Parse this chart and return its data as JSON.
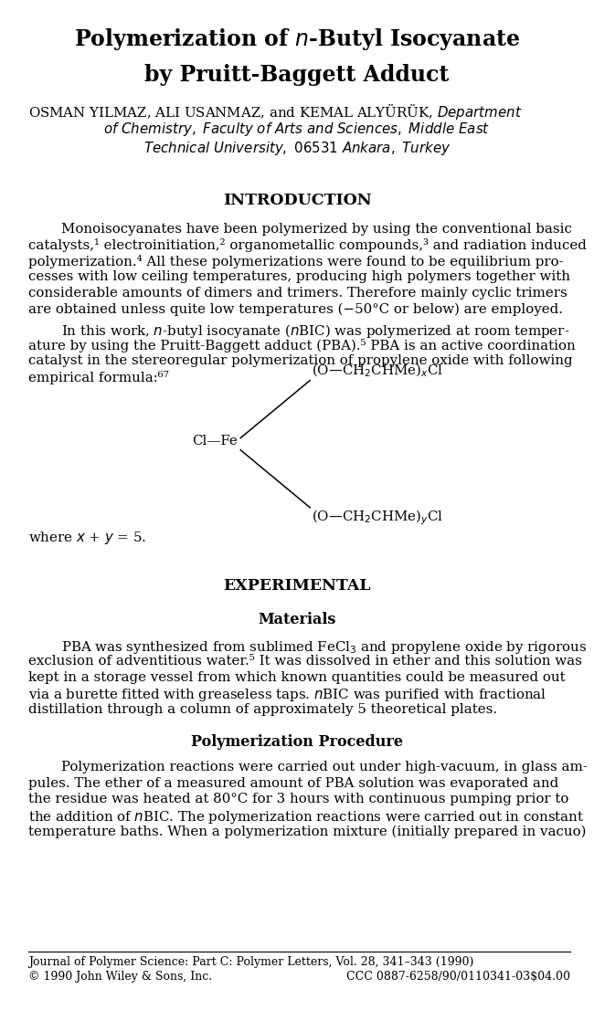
{
  "title_line1": "Polymerization of $\\mathit{n}$-Butyl Isocyanate",
  "title_line2": "by Pruitt-Baggett Adduct",
  "authors_line1": "OSMAN YILMAZ, ALI USANMAZ, and KEMAL ALYÜRÜK, $\\mathit{Department}$",
  "authors_line2": "$\\mathit{of\\ Chemistry,\\ Faculty\\ of\\ Arts\\ and\\ Sciences,\\ Middle\\ East}$",
  "authors_line3": "$\\mathit{Technical\\ University,\\ 06531\\ Ankara,\\ Turkey}$",
  "section_intro": "INTRODUCTION",
  "para1_lines": [
    "Monoisocyanates have been polymerized by using the conventional basic",
    "catalysts,¹ electroinitiation,² organometallic compounds,³ and radiation induced",
    "polymerization.⁴ All these polymerizations were found to be equilibrium pro-",
    "cesses with low ceiling temperatures, producing high polymers together with",
    "considerable amounts of dimers and trimers. Therefore mainly cyclic trimers",
    "are obtained unless quite low temperatures (−50°C or below) are employed."
  ],
  "para2_lines": [
    "In this work, $\\mathit{n}$-butyl isocyanate ($\\mathit{n}$BIC) was polymerized at room temper-",
    "ature by using the Pruitt-Baggett adduct (PBA).⁵ PBA is an active coordination",
    "catalyst in the stereoregular polymerization of propylene oxide with following",
    "empirical formula:⁶⁷"
  ],
  "where_text": "where $\\mathit{x}$ + $\\mathit{y}$ = 5.",
  "section_experimental": "EXPERIMENTAL",
  "subsection_materials": "Materials",
  "mat_lines": [
    "PBA was synthesized from sublimed FeCl$_3$ and propylene oxide by rigorous",
    "exclusion of adventitious water.⁵ It was dissolved in ether and this solution was",
    "kept in a storage vessel from which known quantities could be measured out",
    "via a burette fitted with greaseless taps. $\\mathit{n}$BIC was purified with fractional",
    "distillation through a column of approximately 5 theoretical plates."
  ],
  "subsection_poly": "Polymerization Procedure",
  "poly_lines": [
    "Polymerization reactions were carried out under high-vacuum, in glass am-",
    "pules. The ether of a measured amount of PBA solution was evaporated and",
    "the residue was heated at 80°C for 3 hours with continuous pumping prior to",
    "the addition of $\\mathit{n}$BIC. The polymerization reactions were carried out in constant",
    "temperature baths. When a polymerization mixture (initially prepared in vacuo)"
  ],
  "footer_journal": "Journal of Polymer Science: Part C: Polymer Letters, Vol. 28, 341–343 (1990)",
  "footer_copy": "© 1990 John Wiley & Sons, Inc.",
  "footer_ccc": "CCC 0887-6258/90/0110341-03$04.00",
  "fs_title": 17,
  "fs_body": 10.8,
  "fs_section": 12.5,
  "fs_subsection": 11.5,
  "fs_footer": 9.0,
  "ml": 0.048,
  "mr": 0.96,
  "lh": 0.0158
}
